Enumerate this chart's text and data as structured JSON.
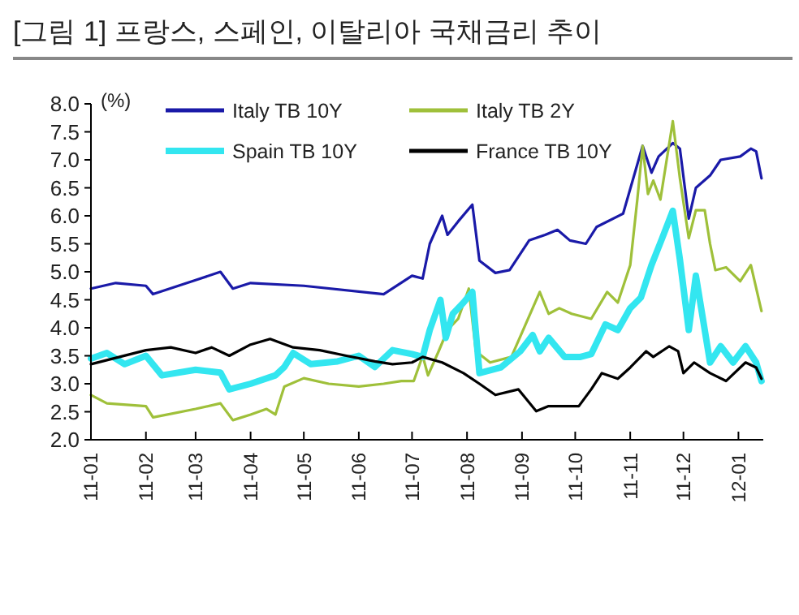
{
  "chart_data": {
    "type": "line",
    "title": "[그림 1] 프랑스, 스페인, 이탈리아 국채금리 추이",
    "ylabel": "(%)",
    "xlim": [
      "2011-01-01",
      "2012-01-15"
    ],
    "xticks": [
      {
        "value": "2011-01-01",
        "label": "11-01"
      },
      {
        "value": "2011-02-01",
        "label": "11-02"
      },
      {
        "value": "2011-03-01",
        "label": "11-03"
      },
      {
        "value": "2011-04-01",
        "label": "11-04"
      },
      {
        "value": "2011-05-01",
        "label": "11-05"
      },
      {
        "value": "2011-06-01",
        "label": "11-06"
      },
      {
        "value": "2011-07-01",
        "label": "11-07"
      },
      {
        "value": "2011-08-01",
        "label": "11-08"
      },
      {
        "value": "2011-09-01",
        "label": "11-09"
      },
      {
        "value": "2011-10-01",
        "label": "11-10"
      },
      {
        "value": "2011-11-01",
        "label": "11-11"
      },
      {
        "value": "2011-12-01",
        "label": "11-12"
      },
      {
        "value": "2012-01-01",
        "label": "12-01"
      }
    ],
    "ylim": [
      2,
      8
    ],
    "yticks": [
      {
        "value": 2,
        "label": "2.0"
      },
      {
        "value": 2.5,
        "label": "2.5"
      },
      {
        "value": 3,
        "label": "3.0"
      },
      {
        "value": 3.5,
        "label": "3.5"
      },
      {
        "value": 4,
        "label": "4.0"
      },
      {
        "value": 4.5,
        "label": "4.5"
      },
      {
        "value": 5,
        "label": "5.0"
      },
      {
        "value": 5.5,
        "label": "5.5"
      },
      {
        "value": 6,
        "label": "6.0"
      },
      {
        "value": 6.5,
        "label": "6.5"
      },
      {
        "value": 7,
        "label": "7.0"
      },
      {
        "value": 7.5,
        "label": "7.5"
      },
      {
        "value": 8,
        "label": "8.0"
      }
    ],
    "grid": false,
    "legend": "top",
    "marker": "none",
    "line_style": "solid",
    "series": [
      {
        "name": "Italy TB 10Y",
        "color": "#1a1aa8",
        "x": [
          "2011-01-01",
          "2011-01-15",
          "2011-02-01",
          "2011-02-05",
          "2011-03-01",
          "2011-03-15",
          "2011-03-22",
          "2011-04-01",
          "2011-05-01",
          "2011-06-15",
          "2011-07-01",
          "2011-07-07",
          "2011-07-11",
          "2011-07-18",
          "2011-07-21",
          "2011-07-27",
          "2011-08-04",
          "2011-08-08",
          "2011-08-17",
          "2011-08-25",
          "2011-09-05",
          "2011-09-14",
          "2011-09-21",
          "2011-09-28",
          "2011-10-07",
          "2011-10-13",
          "2011-10-28",
          "2011-11-08",
          "2011-11-13",
          "2011-11-17",
          "2011-11-25",
          "2011-11-29",
          "2011-12-04",
          "2011-12-08",
          "2011-12-16",
          "2011-12-22",
          "2012-01-02",
          "2012-01-08",
          "2012-01-11",
          "2012-01-14"
        ],
        "values": [
          4.7,
          4.8,
          4.75,
          4.6,
          4.85,
          5.0,
          4.7,
          4.8,
          4.75,
          4.6,
          4.93,
          4.88,
          5.5,
          6.0,
          5.66,
          5.9,
          6.2,
          5.2,
          4.98,
          5.03,
          5.56,
          5.66,
          5.75,
          5.56,
          5.5,
          5.8,
          6.04,
          7.25,
          6.77,
          7.06,
          7.3,
          7.2,
          5.95,
          6.5,
          6.72,
          7.0,
          7.06,
          7.2,
          7.15,
          6.67
        ]
      },
      {
        "name": "Italy TB 2Y",
        "color": "#9fc03a",
        "x": [
          "2011-01-01",
          "2011-01-10",
          "2011-02-01",
          "2011-02-05",
          "2011-03-01",
          "2011-03-15",
          "2011-03-22",
          "2011-04-01",
          "2011-04-10",
          "2011-04-15",
          "2011-04-20",
          "2011-05-01",
          "2011-05-15",
          "2011-06-01",
          "2011-06-15",
          "2011-06-25",
          "2011-07-02",
          "2011-07-07",
          "2011-07-10",
          "2011-07-16",
          "2011-07-21",
          "2011-07-27",
          "2011-08-02",
          "2011-08-06",
          "2011-08-14",
          "2011-08-26",
          "2011-09-03",
          "2011-09-07",
          "2011-09-11",
          "2011-09-16",
          "2011-09-22",
          "2011-09-29",
          "2011-10-10",
          "2011-10-19",
          "2011-10-25",
          "2011-11-01",
          "2011-11-05",
          "2011-11-08",
          "2011-11-11",
          "2011-11-14",
          "2011-11-18",
          "2011-11-25",
          "2011-11-29",
          "2011-12-04",
          "2011-12-08",
          "2011-12-13",
          "2011-12-16",
          "2011-12-19",
          "2011-12-25",
          "2012-01-02",
          "2012-01-08",
          "2012-01-14"
        ],
        "values": [
          2.8,
          2.65,
          2.6,
          2.4,
          2.55,
          2.65,
          2.35,
          2.45,
          2.55,
          2.45,
          2.95,
          3.1,
          3.0,
          2.95,
          3.0,
          3.05,
          3.05,
          3.5,
          3.15,
          3.58,
          3.96,
          4.16,
          4.7,
          3.58,
          3.38,
          3.48,
          4.06,
          4.35,
          4.64,
          4.25,
          4.35,
          4.25,
          4.16,
          4.64,
          4.45,
          5.12,
          6.29,
          7.25,
          6.39,
          6.63,
          6.29,
          7.69,
          6.67,
          5.6,
          6.1,
          6.1,
          5.5,
          5.03,
          5.08,
          4.83,
          5.12,
          4.3
        ]
      },
      {
        "name": "Spain TB 10Y",
        "color": "#33e6f0",
        "x": [
          "2011-01-01",
          "2011-01-10",
          "2011-01-20",
          "2011-02-01",
          "2011-02-10",
          "2011-03-01",
          "2011-03-15",
          "2011-03-20",
          "2011-04-01",
          "2011-04-15",
          "2011-04-20",
          "2011-04-25",
          "2011-05-05",
          "2011-05-20",
          "2011-06-01",
          "2011-06-10",
          "2011-06-20",
          "2011-07-01",
          "2011-07-07",
          "2011-07-11",
          "2011-07-17",
          "2011-07-20",
          "2011-07-24",
          "2011-07-30",
          "2011-08-04",
          "2011-08-08",
          "2011-08-20",
          "2011-08-31",
          "2011-09-07",
          "2011-09-11",
          "2011-09-16",
          "2011-09-25",
          "2011-10-04",
          "2011-10-10",
          "2011-10-18",
          "2011-10-25",
          "2011-11-01",
          "2011-11-07",
          "2011-11-13",
          "2011-11-19",
          "2011-11-25",
          "2011-11-29",
          "2011-12-04",
          "2011-12-08",
          "2011-12-11",
          "2011-12-16",
          "2011-12-22",
          "2011-12-29",
          "2012-01-05",
          "2012-01-11",
          "2012-01-14"
        ],
        "values": [
          3.45,
          3.55,
          3.35,
          3.5,
          3.15,
          3.25,
          3.2,
          2.9,
          3.0,
          3.15,
          3.3,
          3.55,
          3.35,
          3.4,
          3.5,
          3.3,
          3.6,
          3.53,
          3.48,
          3.96,
          4.5,
          3.82,
          4.25,
          4.45,
          4.64,
          3.19,
          3.29,
          3.58,
          3.87,
          3.58,
          3.82,
          3.48,
          3.48,
          3.53,
          4.06,
          3.96,
          4.35,
          4.54,
          5.12,
          5.6,
          6.09,
          5.22,
          3.96,
          4.93,
          4.35,
          3.38,
          3.67,
          3.38,
          3.67,
          3.38,
          3.05
        ]
      },
      {
        "name": "France TB 10Y",
        "color": "#000000",
        "x": [
          "2011-01-01",
          "2011-02-01",
          "2011-02-15",
          "2011-03-01",
          "2011-03-10",
          "2011-03-20",
          "2011-04-01",
          "2011-04-12",
          "2011-04-25",
          "2011-05-10",
          "2011-05-25",
          "2011-06-10",
          "2011-06-20",
          "2011-07-01",
          "2011-07-07",
          "2011-07-18",
          "2011-07-30",
          "2011-08-08",
          "2011-08-17",
          "2011-08-30",
          "2011-09-09",
          "2011-09-16",
          "2011-09-25",
          "2011-10-03",
          "2011-10-10",
          "2011-10-16",
          "2011-10-25",
          "2011-11-01",
          "2011-11-10",
          "2011-11-14",
          "2011-11-23",
          "2011-11-28",
          "2011-12-01",
          "2011-12-07",
          "2011-12-16",
          "2011-12-25",
          "2012-01-05",
          "2012-01-11",
          "2012-01-14"
        ],
        "values": [
          3.35,
          3.6,
          3.65,
          3.55,
          3.65,
          3.5,
          3.7,
          3.8,
          3.65,
          3.6,
          3.5,
          3.4,
          3.35,
          3.38,
          3.48,
          3.38,
          3.19,
          3.0,
          2.8,
          2.9,
          2.51,
          2.6,
          2.6,
          2.6,
          2.9,
          3.19,
          3.09,
          3.29,
          3.58,
          3.48,
          3.67,
          3.58,
          3.19,
          3.38,
          3.19,
          3.05,
          3.38,
          3.29,
          3.09
        ]
      }
    ]
  }
}
